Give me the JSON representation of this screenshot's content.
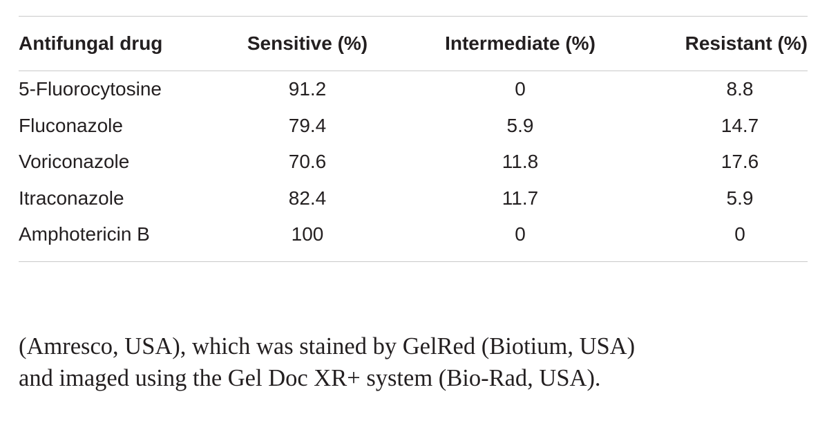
{
  "table": {
    "headers": [
      "Antifungal drug",
      "Sensitive (%)",
      "Intermediate (%)",
      "Resistant (%)"
    ],
    "rows": [
      [
        "5-Fluorocytosine",
        "91.2",
        "0",
        "8.8"
      ],
      [
        "Fluconazole",
        "79.4",
        "5.9",
        "14.7"
      ],
      [
        "Voriconazole",
        "70.6",
        "11.8",
        "17.6"
      ],
      [
        "Itraconazole",
        "82.4",
        "11.7",
        "5.9"
      ],
      [
        "Amphotericin B",
        "100",
        "0",
        "0"
      ]
    ]
  },
  "body_text": {
    "line1": "(Amresco, USA), which was stained by GelRed (Biotium, USA)",
    "line2": "and imaged using the Gel Doc XR+ system (Bio-Rad, USA)."
  },
  "colors": {
    "text": "#231f20",
    "rule": "#c9c9c9",
    "background": "#ffffff"
  }
}
